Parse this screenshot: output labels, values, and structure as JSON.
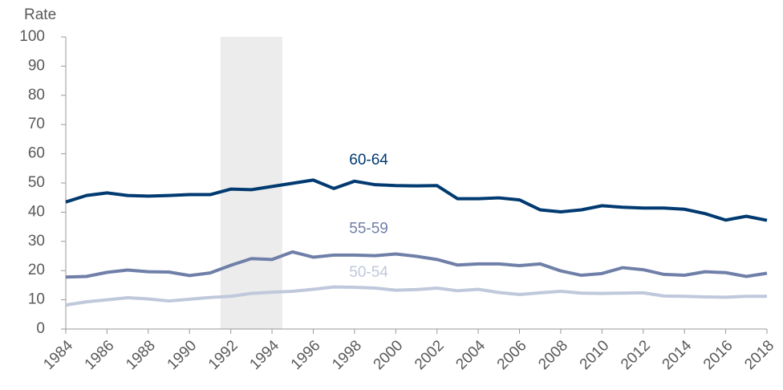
{
  "chart_data": {
    "type": "line",
    "y_axis_label": "Rate",
    "x": [
      1984,
      1985,
      1986,
      1987,
      1988,
      1989,
      1990,
      1991,
      1992,
      1993,
      1994,
      1995,
      1996,
      1997,
      1998,
      1999,
      2000,
      2001,
      2002,
      2003,
      2004,
      2005,
      2006,
      2007,
      2008,
      2009,
      2010,
      2011,
      2012,
      2013,
      2014,
      2015,
      2016,
      2017,
      2018
    ],
    "series": [
      {
        "name": "60-64",
        "color": "#003a70",
        "values": [
          43.5,
          45.7,
          46.6,
          45.7,
          45.5,
          45.7,
          46.0,
          46.0,
          47.9,
          47.7,
          48.8,
          49.9,
          51.0,
          48.1,
          50.6,
          49.4,
          49.1,
          49.0,
          49.1,
          44.6,
          44.6,
          44.9,
          44.2,
          40.8,
          40.1,
          40.8,
          42.2,
          41.7,
          41.4,
          41.4,
          41.0,
          39.5,
          37.3,
          38.6,
          37.2
        ]
      },
      {
        "name": "55-59",
        "color": "#6f7fa8",
        "values": [
          17.8,
          18.0,
          19.4,
          20.2,
          19.6,
          19.5,
          18.3,
          19.2,
          21.8,
          24.1,
          23.8,
          26.4,
          24.6,
          25.3,
          25.3,
          25.1,
          25.7,
          24.9,
          23.8,
          21.9,
          22.3,
          22.3,
          21.7,
          22.3,
          19.9,
          18.4,
          19.0,
          21.0,
          20.3,
          18.7,
          18.4,
          19.6,
          19.3,
          18.0,
          19.1
        ]
      },
      {
        "name": "50-54",
        "color": "#c0c8dc",
        "values": [
          8.2,
          9.3,
          10.0,
          10.7,
          10.3,
          9.6,
          10.2,
          10.8,
          11.2,
          12.2,
          12.6,
          12.9,
          13.6,
          14.4,
          14.3,
          14.0,
          13.3,
          13.5,
          14.0,
          13.1,
          13.6,
          12.5,
          11.8,
          12.4,
          12.9,
          12.3,
          12.2,
          12.3,
          12.4,
          11.3,
          11.2,
          11.0,
          10.9,
          11.2,
          11.2
        ]
      }
    ],
    "xlim": [
      1984,
      2018
    ],
    "xticks": [
      1984,
      1986,
      1988,
      1990,
      1992,
      1994,
      1996,
      1998,
      2000,
      2002,
      2004,
      2006,
      2008,
      2010,
      2012,
      2014,
      2016,
      2018
    ],
    "ylim": [
      0,
      100
    ],
    "yticks": [
      0,
      10,
      20,
      30,
      40,
      50,
      60,
      70,
      80,
      90,
      100
    ],
    "shaded_x": [
      1991.5,
      1994.5
    ],
    "shade_color": "#ececec"
  }
}
